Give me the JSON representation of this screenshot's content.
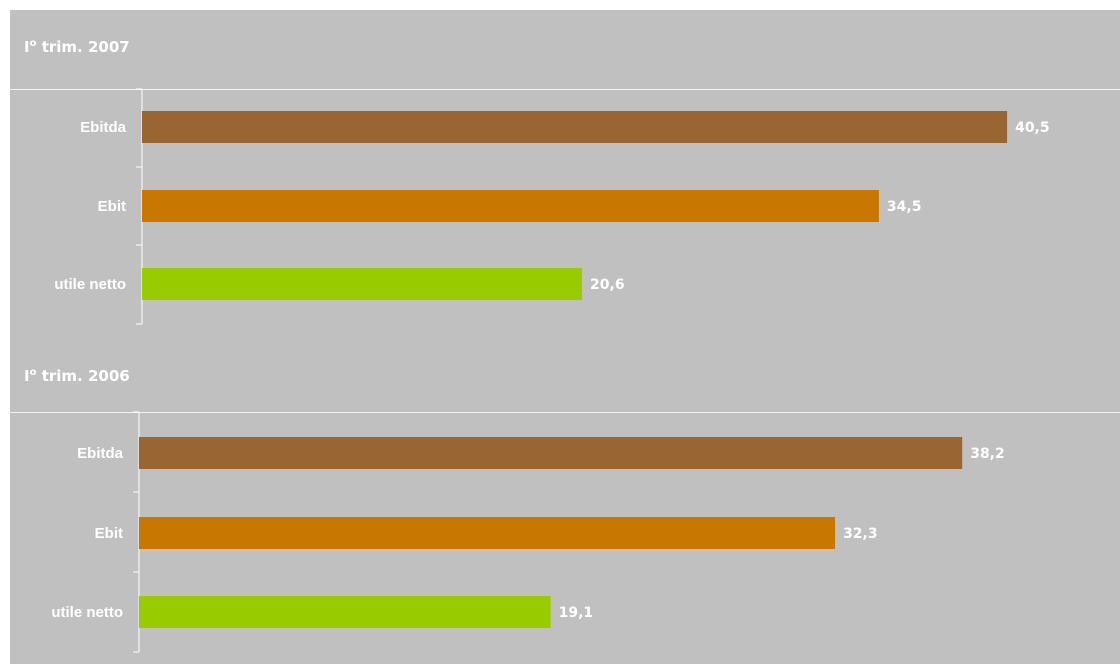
{
  "colors": {
    "background": "#c0c0c0",
    "ebitda": "#996633",
    "ebit": "#c87800",
    "utile_netto": "#99cc00",
    "text": "#ffffff"
  },
  "chart_data": [
    {
      "type": "bar",
      "orientation": "horizontal",
      "title_main": "I",
      "title_sup": "o",
      "title_rest": " trim. 2007",
      "categories": [
        "Ebitda",
        "Ebit",
        "utile netto"
      ],
      "values": [
        40.5,
        34.5,
        20.6
      ],
      "value_labels": [
        "40,5",
        "34,5",
        "20,6"
      ],
      "colors": [
        "#996633",
        "#c87800",
        "#99cc00"
      ]
    },
    {
      "type": "bar",
      "orientation": "horizontal",
      "title_main": "I",
      "title_sup": "o",
      "title_rest": " trim. 2006",
      "categories": [
        "Ebitda",
        "Ebit",
        "utile netto"
      ],
      "values": [
        38.2,
        32.3,
        19.1
      ],
      "value_labels": [
        "38,2",
        "32,3",
        "19,1"
      ],
      "colors": [
        "#996633",
        "#c87800",
        "#99cc00"
      ]
    }
  ]
}
